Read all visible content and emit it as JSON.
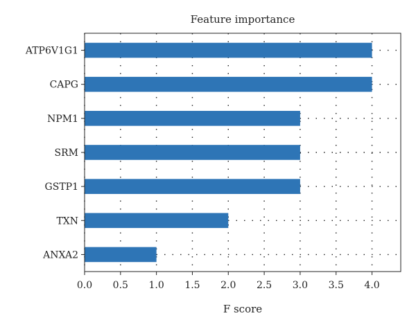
{
  "chart_data": {
    "type": "bar",
    "orientation": "horizontal",
    "title": "Feature importance",
    "xlabel": "F score",
    "ylabel": "",
    "categories": [
      "ATP6V1G1",
      "CAPG",
      "NPM1",
      "SRM",
      "GSTP1",
      "TXN",
      "ANXA2"
    ],
    "values": [
      4,
      4,
      3,
      3,
      3,
      2,
      1
    ],
    "xlim": [
      0,
      4.4
    ],
    "xticks": [
      "0.0",
      "0.5",
      "1.0",
      "1.5",
      "2.0",
      "2.5",
      "3.0",
      "3.5",
      "4.0"
    ],
    "grid": true,
    "grid_style": "dotted",
    "bar_color": "#2e75b6"
  }
}
